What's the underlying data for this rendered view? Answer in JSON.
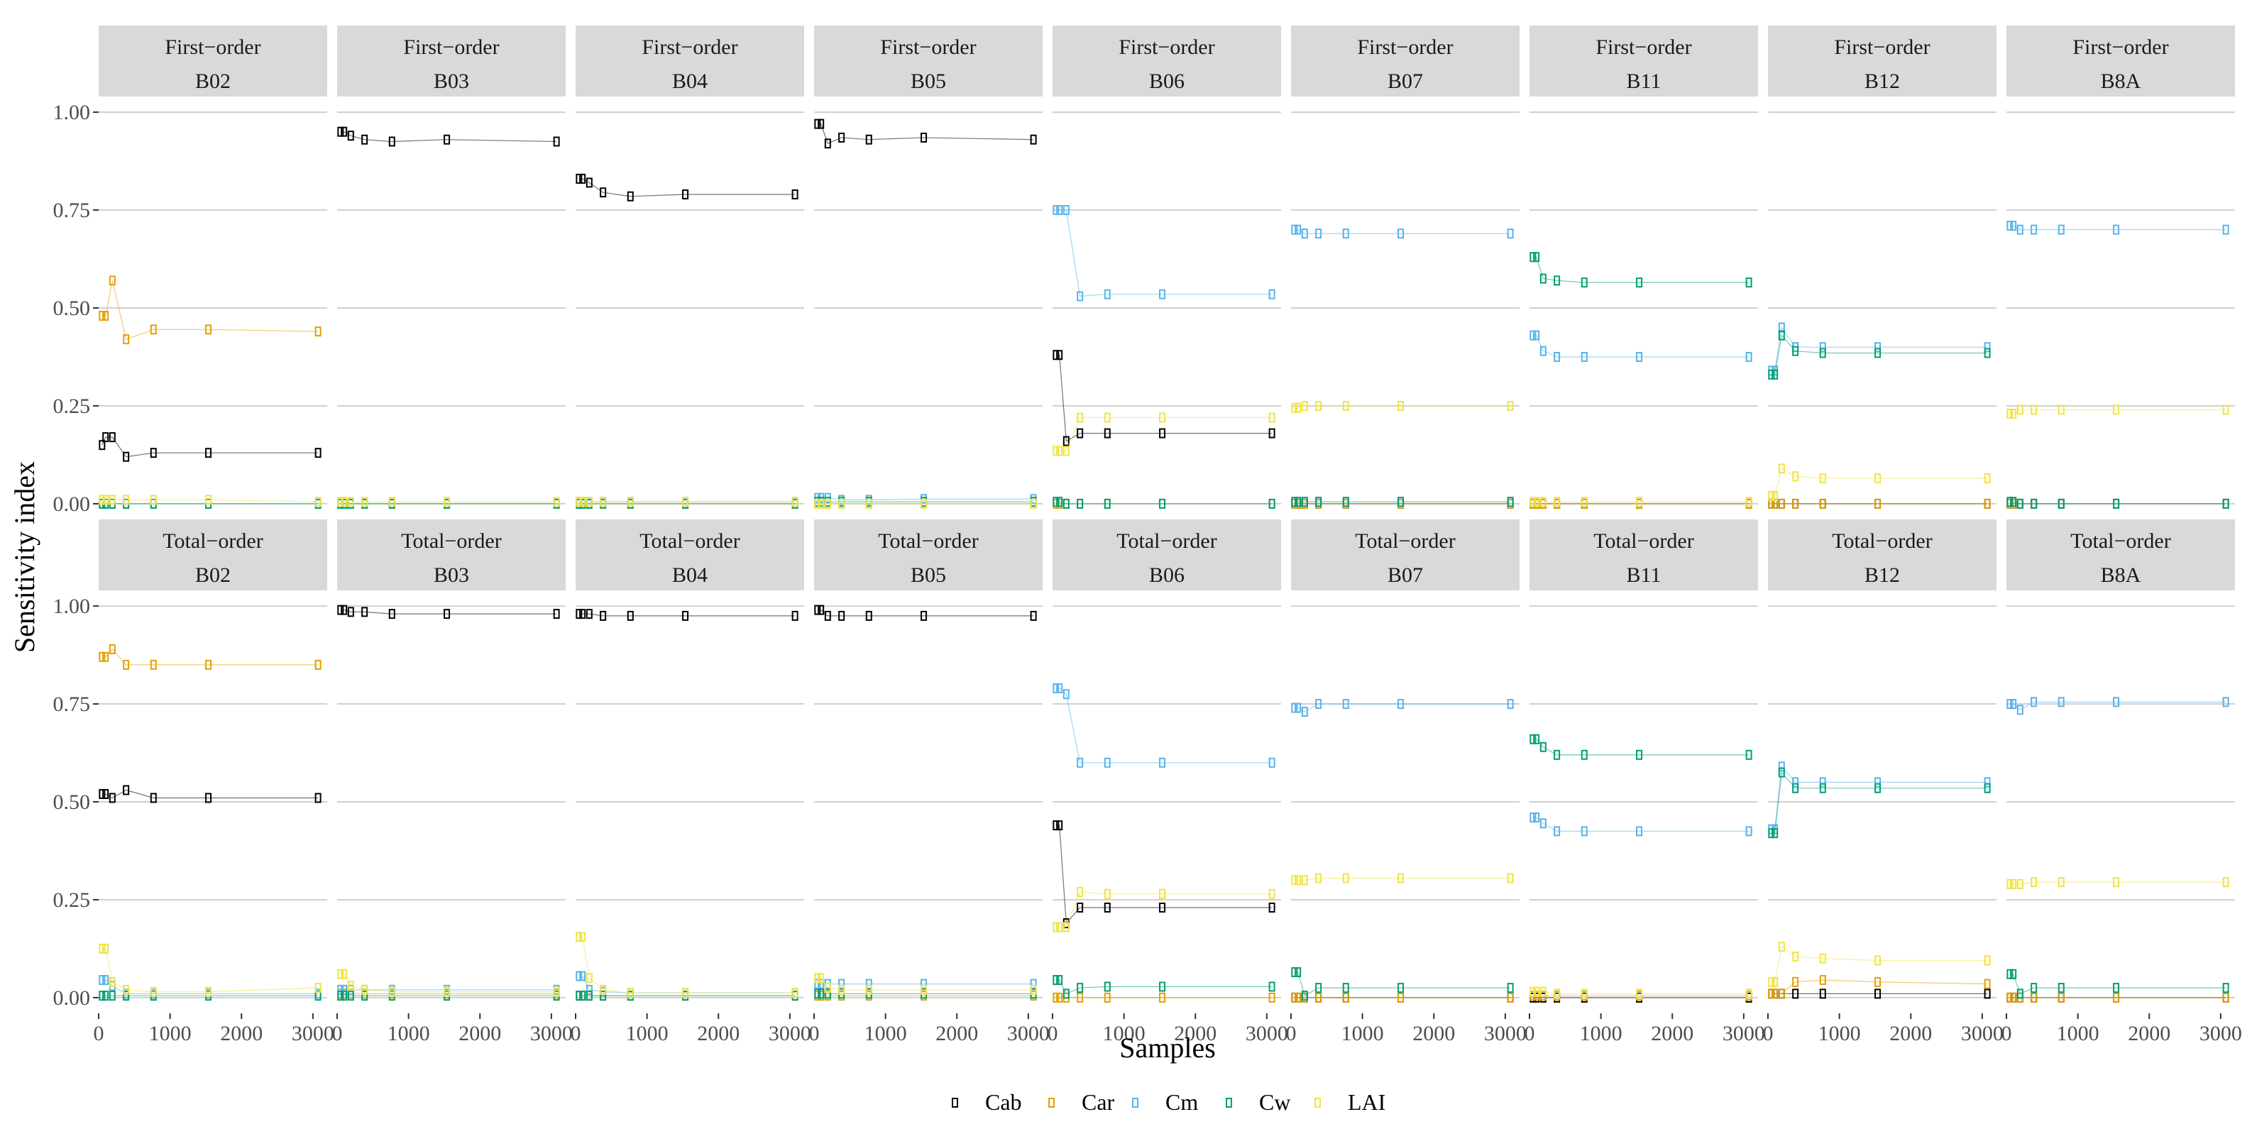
{
  "chart_data": {
    "type": "line",
    "ylabel": "Sensitivity index",
    "xlabel": "Samples",
    "ylim": [
      0,
      1.0
    ],
    "xlim": [
      0,
      3200
    ],
    "yticks": [
      0,
      0.25,
      0.5,
      0.75,
      1.0
    ],
    "ytick_labels": [
      "0.00",
      "0.25",
      "0.50",
      "0.75",
      "1.00"
    ],
    "xticks": [
      0,
      1000,
      2000,
      3000
    ],
    "xtick_labels": [
      "0",
      "1000",
      "2000",
      "3000"
    ],
    "x": [
      48,
      96,
      192,
      384,
      768,
      1536,
      3072
    ],
    "orders": [
      "First−order",
      "Total−order"
    ],
    "bands": [
      "B02",
      "B03",
      "B04",
      "B05",
      "B06",
      "B07",
      "B11",
      "B12",
      "B8A"
    ],
    "legend": [
      "Cab",
      "Car",
      "Cm",
      "Cw",
      "LAI"
    ],
    "colors": {
      "Cab": "#000000",
      "Car": "#E69F00",
      "Cm": "#56B4E9",
      "Cw": "#009E73",
      "LAI": "#F0E442"
    },
    "panels": {
      "First−order": {
        "B02": {
          "Cab": [
            0.15,
            0.17,
            0.17,
            0.12,
            0.13,
            0.13,
            0.13
          ],
          "Car": [
            0.48,
            0.48,
            0.57,
            0.42,
            0.445,
            0.445,
            0.44
          ],
          "Cm": [
            0.0,
            0.0,
            0.0,
            0.0,
            0.0,
            0.0,
            0.0
          ],
          "Cw": [
            0.0,
            0.0,
            0.0,
            0.0,
            0.0,
            0.0,
            0.0
          ],
          "LAI": [
            0.01,
            0.01,
            0.01,
            0.01,
            0.01,
            0.01,
            0.005
          ]
        },
        "B03": {
          "Cab": [
            0.95,
            0.95,
            0.94,
            0.93,
            0.925,
            0.93,
            0.925
          ],
          "Car": [
            0.0,
            0.0,
            0.0,
            0.0,
            0.0,
            0.0,
            0.0
          ],
          "Cm": [
            0.0,
            0.0,
            0.0,
            0.0,
            0.0,
            0.0,
            0.0
          ],
          "Cw": [
            0.0,
            0.0,
            0.0,
            0.0,
            0.0,
            0.0,
            0.0
          ],
          "LAI": [
            0.005,
            0.005,
            0.005,
            0.005,
            0.005,
            0.005,
            0.005
          ]
        },
        "B04": {
          "Cab": [
            0.83,
            0.83,
            0.82,
            0.795,
            0.785,
            0.79,
            0.79
          ],
          "Car": [
            0.0,
            0.0,
            0.0,
            0.0,
            0.0,
            0.0,
            0.0
          ],
          "Cm": [
            0.005,
            0.005,
            0.005,
            0.005,
            0.005,
            0.005,
            0.005
          ],
          "Cw": [
            0.0,
            0.0,
            0.0,
            0.0,
            0.0,
            0.0,
            0.0
          ],
          "LAI": [
            0.005,
            0.005,
            0.005,
            0.005,
            0.005,
            0.005,
            0.005
          ]
        },
        "B05": {
          "Cab": [
            0.97,
            0.97,
            0.92,
            0.935,
            0.93,
            0.935,
            0.93
          ],
          "Car": [
            0.0,
            0.0,
            0.0,
            0.0,
            0.0,
            0.0,
            0.0
          ],
          "Cm": [
            0.015,
            0.015,
            0.015,
            0.01,
            0.01,
            0.012,
            0.012
          ],
          "Cw": [
            0.005,
            0.005,
            0.005,
            0.005,
            0.005,
            0.005,
            0.005
          ],
          "LAI": [
            0.0,
            0.0,
            0.0,
            0.0,
            0.0,
            0.0,
            0.0
          ]
        },
        "B06": {
          "Cab": [
            0.38,
            0.38,
            0.16,
            0.18,
            0.18,
            0.18,
            0.18
          ],
          "Car": [
            0.0,
            0.0,
            0.0,
            0.0,
            0.0,
            0.0,
            0.0
          ],
          "Cm": [
            0.75,
            0.75,
            0.75,
            0.53,
            0.535,
            0.535,
            0.535
          ],
          "Cw": [
            0.005,
            0.005,
            0.0,
            0.0,
            0.0,
            0.0,
            0.0
          ],
          "LAI": [
            0.135,
            0.135,
            0.135,
            0.22,
            0.22,
            0.22,
            0.22
          ]
        },
        "B07": {
          "Cab": [
            0.0,
            0.0,
            0.0,
            0.0,
            0.0,
            0.0,
            0.0
          ],
          "Car": [
            0.0,
            0.0,
            0.0,
            0.0,
            0.0,
            0.0,
            0.0
          ],
          "Cm": [
            0.7,
            0.7,
            0.69,
            0.69,
            0.69,
            0.69,
            0.69
          ],
          "Cw": [
            0.005,
            0.005,
            0.005,
            0.005,
            0.005,
            0.005,
            0.005
          ],
          "LAI": [
            0.245,
            0.245,
            0.25,
            0.25,
            0.25,
            0.25,
            0.25
          ]
        },
        "B11": {
          "Cab": [
            0.0,
            0.0,
            0.0,
            0.0,
            0.0,
            0.0,
            0.0
          ],
          "Car": [
            0.0,
            0.0,
            0.0,
            0.0,
            0.0,
            0.0,
            0.0
          ],
          "Cm": [
            0.43,
            0.43,
            0.39,
            0.375,
            0.375,
            0.375,
            0.375
          ],
          "Cw": [
            0.63,
            0.63,
            0.575,
            0.57,
            0.565,
            0.565,
            0.565
          ],
          "LAI": [
            0.005,
            0.005,
            0.005,
            0.005,
            0.005,
            0.005,
            0.005
          ]
        },
        "B12": {
          "Cab": [
            0.0,
            0.0,
            0.0,
            0.0,
            0.0,
            0.0,
            0.0
          ],
          "Car": [
            0.0,
            0.0,
            0.0,
            0.0,
            0.0,
            0.0,
            0.0
          ],
          "Cm": [
            0.34,
            0.34,
            0.45,
            0.4,
            0.4,
            0.4,
            0.4
          ],
          "Cw": [
            0.33,
            0.33,
            0.43,
            0.39,
            0.385,
            0.385,
            0.385
          ],
          "LAI": [
            0.02,
            0.02,
            0.09,
            0.07,
            0.065,
            0.065,
            0.065
          ]
        },
        "B8A": {
          "Cab": [
            0.0,
            0.0,
            0.0,
            0.0,
            0.0,
            0.0,
            0.0
          ],
          "Car": [
            0.0,
            0.0,
            0.0,
            0.0,
            0.0,
            0.0,
            0.0
          ],
          "Cm": [
            0.71,
            0.71,
            0.7,
            0.7,
            0.7,
            0.7,
            0.7
          ],
          "Cw": [
            0.005,
            0.005,
            0.0,
            0.0,
            0.0,
            0.0,
            0.0
          ],
          "LAI": [
            0.23,
            0.23,
            0.24,
            0.24,
            0.24,
            0.24,
            0.24
          ]
        }
      },
      "Total−order": {
        "B02": {
          "Cab": [
            0.52,
            0.52,
            0.51,
            0.53,
            0.51,
            0.51,
            0.51
          ],
          "Car": [
            0.87,
            0.87,
            0.89,
            0.85,
            0.85,
            0.85,
            0.85
          ],
          "Cm": [
            0.045,
            0.045,
            0.03,
            0.01,
            0.01,
            0.01,
            0.01
          ],
          "Cw": [
            0.005,
            0.005,
            0.005,
            0.005,
            0.005,
            0.005,
            0.005
          ],
          "LAI": [
            0.125,
            0.125,
            0.04,
            0.02,
            0.015,
            0.015,
            0.025
          ]
        },
        "B03": {
          "Cab": [
            0.99,
            0.99,
            0.985,
            0.985,
            0.98,
            0.98,
            0.98
          ],
          "Car": [
            0.01,
            0.01,
            0.01,
            0.01,
            0.01,
            0.01,
            0.01
          ],
          "Cm": [
            0.02,
            0.02,
            0.02,
            0.02,
            0.02,
            0.02,
            0.02
          ],
          "Cw": [
            0.005,
            0.005,
            0.005,
            0.005,
            0.005,
            0.005,
            0.005
          ],
          "LAI": [
            0.06,
            0.06,
            0.03,
            0.02,
            0.015,
            0.015,
            0.015
          ]
        },
        "B04": {
          "Cab": [
            0.98,
            0.98,
            0.98,
            0.975,
            0.975,
            0.975,
            0.975
          ],
          "Car": [
            0.005,
            0.005,
            0.005,
            0.005,
            0.005,
            0.005,
            0.005
          ],
          "Cm": [
            0.055,
            0.055,
            0.02,
            0.015,
            0.012,
            0.012,
            0.012
          ],
          "Cw": [
            0.005,
            0.005,
            0.005,
            0.005,
            0.005,
            0.005,
            0.005
          ],
          "LAI": [
            0.155,
            0.155,
            0.05,
            0.02,
            0.012,
            0.012,
            0.012
          ]
        },
        "B05": {
          "Cab": [
            0.99,
            0.99,
            0.975,
            0.975,
            0.975,
            0.975,
            0.975
          ],
          "Car": [
            0.005,
            0.005,
            0.005,
            0.005,
            0.005,
            0.005,
            0.005
          ],
          "Cm": [
            0.035,
            0.035,
            0.035,
            0.035,
            0.035,
            0.035,
            0.035
          ],
          "Cw": [
            0.01,
            0.01,
            0.01,
            0.01,
            0.01,
            0.01,
            0.01
          ],
          "LAI": [
            0.05,
            0.05,
            0.025,
            0.02,
            0.02,
            0.02,
            0.02
          ]
        },
        "B06": {
          "Cab": [
            0.44,
            0.44,
            0.19,
            0.23,
            0.23,
            0.23,
            0.23
          ],
          "Car": [
            0.0,
            0.0,
            0.0,
            0.0,
            0.0,
            0.0,
            0.0
          ],
          "Cm": [
            0.79,
            0.79,
            0.775,
            0.6,
            0.6,
            0.6,
            0.6
          ],
          "Cw": [
            0.045,
            0.045,
            0.01,
            0.025,
            0.028,
            0.028,
            0.028
          ],
          "LAI": [
            0.18,
            0.18,
            0.18,
            0.27,
            0.265,
            0.265,
            0.265
          ]
        },
        "B07": {
          "Cab": [
            0.0,
            0.0,
            0.0,
            0.0,
            0.0,
            0.0,
            0.0
          ],
          "Car": [
            0.0,
            0.0,
            0.0,
            0.0,
            0.0,
            0.0,
            0.0
          ],
          "Cm": [
            0.74,
            0.74,
            0.73,
            0.75,
            0.75,
            0.75,
            0.75
          ],
          "Cw": [
            0.065,
            0.065,
            0.005,
            0.025,
            0.025,
            0.025,
            0.025
          ],
          "LAI": [
            0.3,
            0.3,
            0.3,
            0.305,
            0.305,
            0.305,
            0.305
          ]
        },
        "B11": {
          "Cab": [
            0.0,
            0.0,
            0.0,
            0.0,
            0.0,
            0.0,
            0.0
          ],
          "Car": [
            0.005,
            0.005,
            0.005,
            0.005,
            0.005,
            0.005,
            0.005
          ],
          "Cm": [
            0.46,
            0.46,
            0.445,
            0.425,
            0.425,
            0.425,
            0.425
          ],
          "Cw": [
            0.66,
            0.66,
            0.64,
            0.62,
            0.62,
            0.62,
            0.62
          ],
          "LAI": [
            0.015,
            0.015,
            0.015,
            0.01,
            0.01,
            0.01,
            0.01
          ]
        },
        "B12": {
          "Cab": [
            0.01,
            0.01,
            0.01,
            0.01,
            0.01,
            0.01,
            0.01
          ],
          "Car": [
            0.01,
            0.01,
            0.01,
            0.04,
            0.045,
            0.04,
            0.035
          ],
          "Cm": [
            0.43,
            0.43,
            0.59,
            0.55,
            0.55,
            0.55,
            0.55
          ],
          "Cw": [
            0.42,
            0.42,
            0.575,
            0.535,
            0.535,
            0.535,
            0.535
          ],
          "LAI": [
            0.04,
            0.04,
            0.13,
            0.105,
            0.1,
            0.095,
            0.095
          ]
        },
        "B8A": {
          "Cab": [
            0.0,
            0.0,
            0.0,
            0.0,
            0.0,
            0.0,
            0.0
          ],
          "Car": [
            0.0,
            0.0,
            0.0,
            0.0,
            0.0,
            0.0,
            0.0
          ],
          "Cm": [
            0.75,
            0.75,
            0.735,
            0.755,
            0.755,
            0.755,
            0.755
          ],
          "Cw": [
            0.06,
            0.06,
            0.01,
            0.025,
            0.025,
            0.025,
            0.025
          ],
          "LAI": [
            0.29,
            0.29,
            0.29,
            0.295,
            0.295,
            0.295,
            0.295
          ]
        }
      }
    }
  }
}
